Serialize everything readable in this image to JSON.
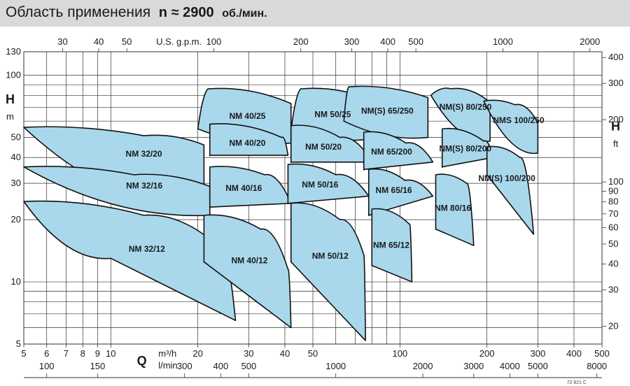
{
  "header": {
    "title": "Область применения",
    "speed": "n ≈ 2900",
    "speed_unit": "об./мин."
  },
  "footer_code": "72 821 C",
  "colors": {
    "fill": "#a9d8ec",
    "stroke": "#111111",
    "grid": "#333333",
    "title_bg": "#d9d9d9"
  },
  "chart_data": {
    "type": "area",
    "scale": "log-log",
    "grid": true,
    "axes": {
      "bottom_q": {
        "unit_label": "m³/h",
        "symbol": "Q",
        "range": [
          5,
          500
        ],
        "tick_labels": [
          "5",
          "6",
          "7",
          "8",
          "9",
          "10",
          "20",
          "30",
          "40",
          "50",
          "100",
          "200",
          "300",
          "400",
          "500"
        ]
      },
      "bottom_lmin": {
        "unit_label": "l/min",
        "tick_labels": [
          "100",
          "150",
          "300",
          "400",
          "500",
          "1000",
          "2000",
          "3000",
          "4000",
          "5000",
          "8000"
        ]
      },
      "top_usgpm": {
        "unit_label": "U.S. g.p.m.",
        "tick_labels": [
          "30",
          "40",
          "50",
          "100",
          "200",
          "300",
          "400",
          "500",
          "1000",
          "2000"
        ]
      },
      "left_h": {
        "symbol": "H",
        "unit_label": "m",
        "range": [
          5,
          130
        ],
        "tick_labels": [
          "5",
          "10",
          "20",
          "30",
          "40",
          "50",
          "100",
          "130"
        ]
      },
      "right_h": {
        "symbol": "H",
        "unit_label": "ft",
        "tick_labels": [
          "20",
          "30",
          "40",
          "50",
          "60",
          "70",
          "80",
          "90",
          "100",
          "200",
          "300",
          "400"
        ]
      }
    },
    "regions": [
      {
        "name": "NM 32/20",
        "curves": [
          [
            5,
            56
          ],
          [
            13,
            51
          ],
          [
            21,
            46
          ]
        ],
        "bottom_end": [
          21,
          23
        ]
      },
      {
        "name": "NM 32/16",
        "curves": [
          [
            5,
            36
          ],
          [
            12,
            33
          ],
          [
            22,
            29
          ]
        ],
        "bottom_end": [
          22,
          21
        ]
      },
      {
        "name": "NM 32/12",
        "curves": [
          [
            5,
            24.5
          ],
          [
            13,
            21
          ],
          [
            24,
            14.5
          ],
          [
            27,
            6.5
          ]
        ],
        "bottom_end": [
          10,
          13
        ]
      },
      {
        "name": "NM 40/25",
        "curves": [
          [
            20,
            55
          ],
          [
            22,
            86
          ],
          [
            42,
            73
          ]
        ],
        "bottom_end": [
          42,
          47
        ]
      },
      {
        "name": "NM 40/20",
        "curves": [
          [
            22,
            58
          ],
          [
            39,
            50
          ],
          [
            41,
            41
          ]
        ],
        "bottom_end": [
          22,
          41
        ]
      },
      {
        "name": "NM 40/16",
        "curves": [
          [
            22,
            36
          ],
          [
            34,
            33
          ],
          [
            42,
            24
          ]
        ],
        "bottom_end": [
          22,
          23
        ]
      },
      {
        "name": "NM 40/12",
        "curves": [
          [
            21,
            21
          ],
          [
            33,
            18
          ],
          [
            41,
            11.5
          ],
          [
            42,
            6
          ]
        ],
        "bottom_end": [
          21,
          12.5
        ]
      },
      {
        "name": "NM 50/25",
        "curves": [
          [
            42,
            54
          ],
          [
            46,
            86
          ],
          [
            78,
            77
          ]
        ],
        "bottom_end": [
          78,
          49
        ]
      },
      {
        "name": "NM 50/20",
        "curves": [
          [
            42,
            57
          ],
          [
            62,
            50
          ],
          [
            80,
            38
          ]
        ],
        "bottom_end": [
          42,
          38
        ]
      },
      {
        "name": "NM 50/16",
        "curves": [
          [
            41,
            37
          ],
          [
            60,
            33
          ],
          [
            78,
            26
          ]
        ],
        "bottom_end": [
          41,
          24
        ]
      },
      {
        "name": "NM 50/12",
        "curves": [
          [
            42,
            24
          ],
          [
            62,
            20
          ],
          [
            75,
            13.5
          ],
          [
            76,
            5.2
          ]
        ],
        "bottom_end": [
          42,
          12.5
        ]
      },
      {
        "name": "NM(S) 65/250",
        "curves": [
          [
            64,
            60
          ],
          [
            67,
            88
          ],
          [
            125,
            78
          ]
        ],
        "bottom_end": [
          125,
          50
        ]
      },
      {
        "name": "NM 65/200",
        "curves": [
          [
            75,
            53
          ],
          [
            105,
            47
          ],
          [
            130,
            38
          ]
        ],
        "bottom_end": [
          75,
          35
        ]
      },
      {
        "name": "NM 65/16",
        "curves": [
          [
            78,
            35
          ],
          [
            104,
            31
          ],
          [
            130,
            26
          ]
        ],
        "bottom_end": [
          78,
          21
        ]
      },
      {
        "name": "NM 65/12",
        "curves": [
          [
            80,
            22.5
          ],
          [
            108,
            19
          ],
          [
            110,
            10
          ]
        ],
        "bottom_end": [
          80,
          12
        ]
      },
      {
        "name": "NM(S) 80/250",
        "curves": [
          [
            128,
            80
          ],
          [
            150,
            86
          ],
          [
            205,
            74
          ]
        ],
        "bottom_end": [
          205,
          48
        ]
      },
      {
        "name": "NM(S) 80/200",
        "curves": [
          [
            140,
            55
          ],
          [
            195,
            48
          ],
          [
            210,
            40
          ]
        ],
        "bottom_end": [
          140,
          36
        ]
      },
      {
        "name": "NM 80/16",
        "curves": [
          [
            133,
            33
          ],
          [
            170,
            30
          ],
          [
            180,
            15
          ]
        ],
        "bottom_end": [
          133,
          18
        ]
      },
      {
        "name": "NMS 100/250",
        "curves": [
          [
            195,
            75
          ],
          [
            250,
            72
          ],
          [
            300,
            59
          ]
        ],
        "bottom_end": [
          300,
          42
        ]
      },
      {
        "name": "NM(S) 100/200",
        "curves": [
          [
            200,
            45
          ],
          [
            260,
            40
          ],
          [
            290,
            17
          ]
        ],
        "bottom_end": [
          200,
          33
        ]
      }
    ]
  }
}
